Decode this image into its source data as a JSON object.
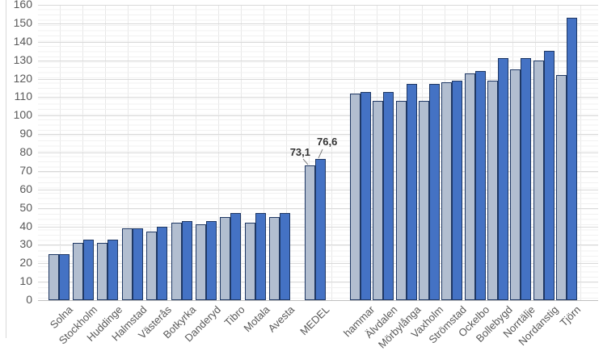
{
  "chart_data": {
    "type": "bar",
    "title": "",
    "categories": [
      "Solna",
      "Stockholm",
      "Huddinge",
      "Halmstad",
      "Västerås",
      "Botkyrka",
      "Danderyd",
      "Tibro",
      "Motala",
      "Avesta",
      "MEDEL",
      "hammar",
      "Älvdalen",
      "Mörbylånga",
      "Vaxholm",
      "Strömstad",
      "Ockelbo",
      "Bollebygd",
      "Norrtälje",
      "Nordanstig",
      "Tjörn"
    ],
    "series": [
      {
        "name": "series-light",
        "values": [
          25,
          31,
          31,
          39,
          37,
          42,
          41,
          45,
          42,
          45,
          73.1,
          112,
          108,
          108,
          108,
          118,
          123,
          119,
          125,
          130,
          122
        ]
      },
      {
        "name": "series-dark",
        "values": [
          25,
          33,
          33,
          39,
          40,
          43,
          43,
          47,
          47,
          47,
          76.6,
          113,
          113,
          117,
          117,
          119,
          124,
          131,
          131,
          135,
          153
        ]
      }
    ],
    "data_labels": [
      {
        "category": "MEDEL",
        "series": "series-light",
        "text": "73,1"
      },
      {
        "category": "MEDEL",
        "series": "series-dark",
        "text": "76,6"
      }
    ],
    "ylim": [
      0,
      160
    ],
    "ytick_step": 10,
    "ytick_labels": [
      "0",
      "10",
      "20",
      "30",
      "40",
      "50",
      "60",
      "70",
      "80",
      "90",
      "100",
      "110",
      "120",
      "130",
      "140",
      "150",
      "160"
    ],
    "grid": true,
    "legend": "none",
    "xlabel": "",
    "ylabel": "",
    "colors": {
      "bar_light": "#b2bed0",
      "bar_dark": "#4472c4",
      "bar_border": "#1f3864",
      "gridline": "#d9d9d9",
      "axis_line": "#bfbfbf",
      "axis_text": "#595959",
      "data_label_text": "#333333",
      "leader_line": "#808080"
    }
  }
}
